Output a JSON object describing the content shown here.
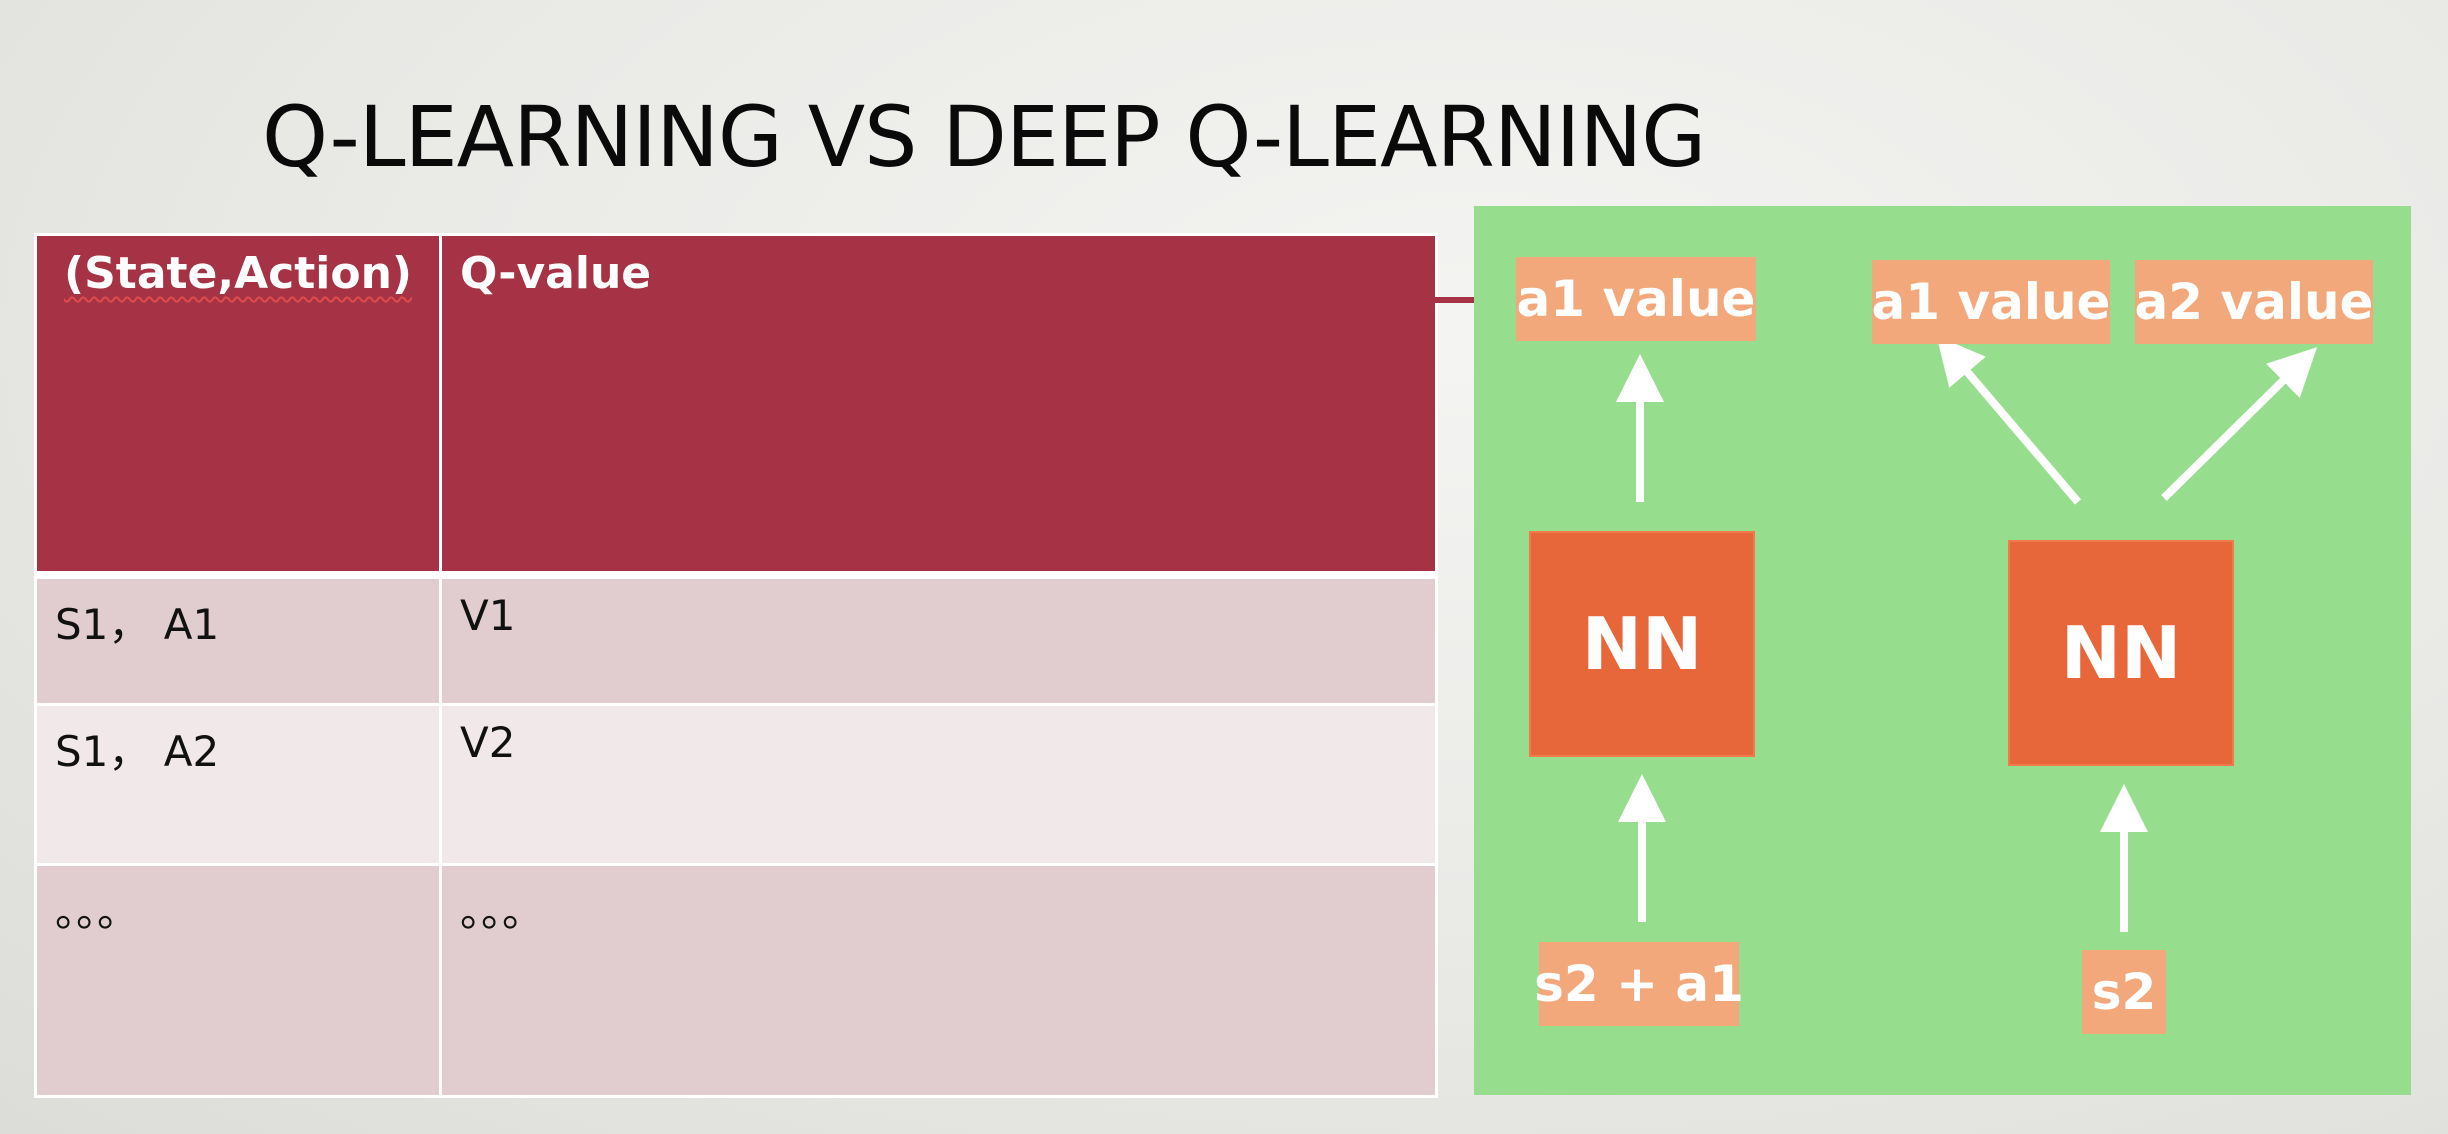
{
  "slide": {
    "title": "Q-LEARNING  VS DEEP Q-LEARNING"
  },
  "table": {
    "headers": [
      "(State,Action)",
      "Q-value"
    ],
    "rows": [
      [
        "S1， A1",
        "V1"
      ],
      [
        "S1， A2",
        "V2"
      ],
      [
        "。。。",
        "。。。"
      ]
    ]
  },
  "diagram": {
    "left": {
      "output": "a1 value",
      "network": "NN",
      "input": "s2 + a1"
    },
    "right": {
      "outputs": [
        "a1 value",
        "a2 value"
      ],
      "network": "NN",
      "input": "s2"
    },
    "colors": {
      "background": "#96de8e",
      "value_box": "#f2a87a",
      "network_box": "#e8673a",
      "arrow": "#ffffff"
    }
  }
}
